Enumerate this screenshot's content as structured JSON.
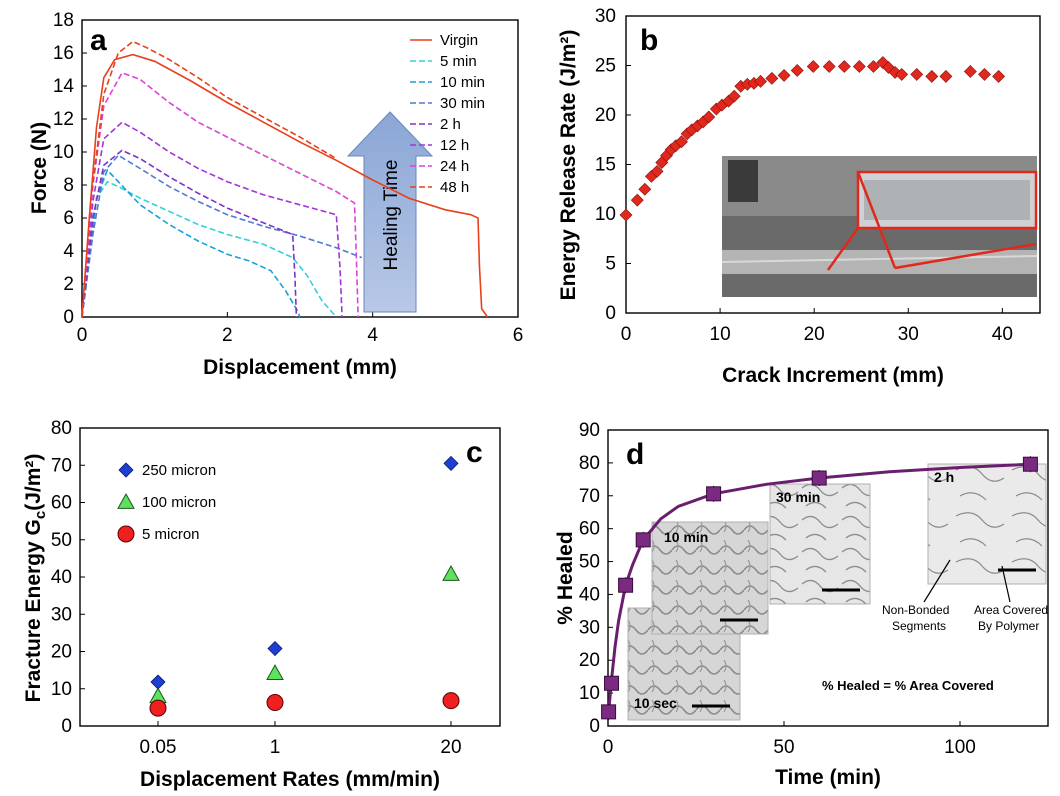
{
  "chart_data": [
    {
      "panel": "a",
      "type": "line",
      "xlabel": "Displacement (mm)",
      "ylabel": "Force (N)",
      "xlim": [
        0,
        6
      ],
      "ylim": [
        0,
        18
      ],
      "xticks": [
        "0",
        "2",
        "4",
        "6"
      ],
      "yticks": [
        "0",
        "2",
        "4",
        "6",
        "8",
        "10",
        "12",
        "14",
        "16",
        "18"
      ],
      "annotation": "Healing Time",
      "series": [
        {
          "name": "Virgin",
          "color": "#e8401c",
          "dash": "solid",
          "points": [
            [
              0,
              0
            ],
            [
              0.1,
              6
            ],
            [
              0.2,
              11.5
            ],
            [
              0.3,
              14.5
            ],
            [
              0.45,
              15.6
            ],
            [
              0.7,
              15.9
            ],
            [
              1.0,
              15.5
            ],
            [
              1.5,
              14.3
            ],
            [
              2.0,
              13.0
            ],
            [
              2.5,
              11.8
            ],
            [
              3.0,
              10.6
            ],
            [
              3.5,
              9.5
            ],
            [
              4.0,
              8.3
            ],
            [
              4.5,
              7.2
            ],
            [
              5.0,
              6.5
            ],
            [
              5.35,
              6.2
            ],
            [
              5.45,
              6.0
            ],
            [
              5.47,
              3.0
            ],
            [
              5.5,
              0.5
            ],
            [
              5.58,
              0
            ]
          ]
        },
        {
          "name": "5 min",
          "color": "#35d0d8",
          "dash": "dash",
          "points": [
            [
              0,
              0
            ],
            [
              0.1,
              3.5
            ],
            [
              0.2,
              7.2
            ],
            [
              0.35,
              8.2
            ],
            [
              0.5,
              7.9
            ],
            [
              0.8,
              7.2
            ],
            [
              1.2,
              6.4
            ],
            [
              1.6,
              5.6
            ],
            [
              2.0,
              5.0
            ],
            [
              2.5,
              4.4
            ],
            [
              2.9,
              3.6
            ],
            [
              3.1,
              2.5
            ],
            [
              3.3,
              1.0
            ],
            [
              3.5,
              0
            ]
          ]
        },
        {
          "name": "10 min",
          "color": "#1aa0d8",
          "dash": "dash",
          "points": [
            [
              0,
              0
            ],
            [
              0.1,
              3.5
            ],
            [
              0.2,
              7.2
            ],
            [
              0.35,
              8.9
            ],
            [
              0.5,
              8.2
            ],
            [
              0.8,
              6.8
            ],
            [
              1.2,
              5.6
            ],
            [
              1.6,
              4.6
            ],
            [
              2.0,
              3.8
            ],
            [
              2.3,
              3.4
            ],
            [
              2.6,
              2.8
            ],
            [
              2.8,
              1.6
            ],
            [
              2.95,
              0.5
            ],
            [
              3.0,
              0
            ]
          ]
        },
        {
          "name": "30 min",
          "color": "#4f7ad0",
          "dash": "dash",
          "points": [
            [
              0,
              0
            ],
            [
              0.15,
              5
            ],
            [
              0.3,
              8.8
            ],
            [
              0.5,
              9.8
            ],
            [
              0.8,
              9.0
            ],
            [
              1.2,
              7.9
            ],
            [
              1.6,
              7.0
            ],
            [
              2.0,
              6.2
            ],
            [
              2.5,
              5.5
            ],
            [
              3.0,
              4.9
            ],
            [
              3.5,
              4.2
            ],
            [
              3.85,
              3.6
            ]
          ]
        },
        {
          "name": "2 h",
          "color": "#7a33c8",
          "dash": "dash",
          "points": [
            [
              0,
              0
            ],
            [
              0.15,
              6
            ],
            [
              0.3,
              9.2
            ],
            [
              0.55,
              10.1
            ],
            [
              0.8,
              9.6
            ],
            [
              1.2,
              8.5
            ],
            [
              1.6,
              7.5
            ],
            [
              2.0,
              6.6
            ],
            [
              2.5,
              5.7
            ],
            [
              2.9,
              5.0
            ],
            [
              2.93,
              2.5
            ],
            [
              2.95,
              0
            ]
          ]
        },
        {
          "name": "12 h",
          "color": "#a035d8",
          "dash": "dash",
          "points": [
            [
              0,
              0
            ],
            [
              0.15,
              7
            ],
            [
              0.3,
              10.8
            ],
            [
              0.55,
              11.8
            ],
            [
              0.8,
              11.2
            ],
            [
              1.2,
              10.0
            ],
            [
              1.6,
              9.0
            ],
            [
              2.0,
              8.2
            ],
            [
              2.5,
              7.4
            ],
            [
              3.0,
              6.8
            ],
            [
              3.5,
              6.2
            ],
            [
              3.55,
              3.0
            ],
            [
              3.58,
              0
            ]
          ]
        },
        {
          "name": "24 h",
          "color": "#e040d8",
          "dash": "dash",
          "points": [
            [
              0,
              0
            ],
            [
              0.15,
              8
            ],
            [
              0.3,
              12.8
            ],
            [
              0.55,
              14.8
            ],
            [
              0.8,
              14.4
            ],
            [
              1.2,
              13.0
            ],
            [
              1.6,
              11.8
            ],
            [
              2.0,
              10.9
            ],
            [
              2.5,
              9.8
            ],
            [
              3.0,
              8.7
            ],
            [
              3.5,
              7.6
            ],
            [
              3.75,
              6.9
            ],
            [
              3.78,
              3.0
            ],
            [
              3.8,
              0
            ]
          ]
        },
        {
          "name": "48 h",
          "color": "#e8401c",
          "dash": "dash",
          "points": [
            [
              0,
              0
            ],
            [
              0.12,
              7
            ],
            [
              0.3,
              13.5
            ],
            [
              0.5,
              16.0
            ],
            [
              0.7,
              16.7
            ],
            [
              0.9,
              16.3
            ],
            [
              1.2,
              15.6
            ],
            [
              1.6,
              14.5
            ],
            [
              2.0,
              13.3
            ],
            [
              2.5,
              12.1
            ],
            [
              3.0,
              10.9
            ],
            [
              3.5,
              9.6
            ]
          ]
        }
      ]
    },
    {
      "panel": "b",
      "type": "scatter",
      "xlabel": "Crack Increment (mm)",
      "ylabel": "Energy Release Rate (J/m²)",
      "xlim": [
        0,
        44
      ],
      "ylim": [
        0,
        30
      ],
      "xticks": [
        "0",
        "10",
        "20",
        "30",
        "40"
      ],
      "yticks": [
        "0",
        "5",
        "10",
        "15",
        "20",
        "25",
        "30"
      ],
      "marker_color": "#e0281c",
      "x": [
        0,
        1.2,
        2.0,
        2.7,
        3.3,
        3.8,
        4.3,
        4.8,
        5.3,
        5.9,
        6.5,
        7.0,
        7.6,
        8.2,
        8.8,
        9.6,
        10.2,
        10.9,
        11.5,
        12.2,
        12.9,
        13.6,
        14.3,
        15.5,
        16.8,
        18.2,
        19.9,
        21.6,
        23.2,
        24.8,
        26.3,
        27.3,
        27.9,
        28.6,
        29.3,
        30.9,
        32.5,
        34.0,
        36.6,
        38.1,
        39.6
      ],
      "y": [
        9.9,
        11.4,
        12.5,
        13.8,
        14.3,
        15.2,
        15.9,
        16.5,
        16.9,
        17.3,
        18.1,
        18.5,
        18.9,
        19.3,
        19.8,
        20.6,
        21.0,
        21.4,
        21.9,
        22.9,
        23.1,
        23.2,
        23.4,
        23.7,
        24.0,
        24.5,
        24.9,
        24.9,
        24.9,
        24.9,
        24.9,
        25.3,
        24.8,
        24.3,
        24.1,
        24.1,
        23.9,
        23.9,
        24.4,
        24.1,
        23.9
      ]
    },
    {
      "panel": "c",
      "type": "scatter",
      "xlabel": "Displacement Rates (mm/min)",
      "ylabel": "Fracture Energy G",
      "ylabel_sub": "c",
      "ylabel_tail": "(J/m²)",
      "categories": [
        "0.05",
        "1",
        "20"
      ],
      "ylim": [
        0,
        80
      ],
      "yticks": [
        "0",
        "10",
        "20",
        "30",
        "40",
        "50",
        "60",
        "70",
        "80"
      ],
      "series": [
        {
          "name": "250 micron",
          "color": "#1f3fd0",
          "marker": "diamond",
          "values": [
            11.8,
            20.8,
            70.5
          ]
        },
        {
          "name": "100 micron",
          "color": "#5fe05f",
          "marker": "triangle",
          "values": [
            8.0,
            14.2,
            40.8
          ]
        },
        {
          "name": "5 micron",
          "color": "#f02020",
          "marker": "circle",
          "values": [
            4.8,
            6.3,
            6.8
          ]
        }
      ]
    },
    {
      "panel": "d",
      "type": "line",
      "xlabel": "Time (min)",
      "ylabel": "% Healed",
      "xlim": [
        0,
        125
      ],
      "ylim": [
        0,
        90
      ],
      "xticks": [
        "0",
        "50",
        "100"
      ],
      "yticks": [
        "0",
        "10",
        "20",
        "30",
        "40",
        "50",
        "60",
        "70",
        "80",
        "90"
      ],
      "line_color": "#6a1f6e",
      "marker_color": "#7a2a80",
      "x": [
        0.17,
        1,
        5,
        10,
        30,
        60,
        120
      ],
      "y": [
        4.3,
        13,
        42.8,
        56.6,
        70.6,
        75.4,
        79.6
      ],
      "fit_curve": [
        [
          0,
          2
        ],
        [
          1,
          14
        ],
        [
          2,
          24
        ],
        [
          3,
          32
        ],
        [
          5,
          42.8
        ],
        [
          7,
          49
        ],
        [
          10,
          56.6
        ],
        [
          15,
          63
        ],
        [
          20,
          66.8
        ],
        [
          30,
          70.6
        ],
        [
          45,
          73.5
        ],
        [
          60,
          75.4
        ],
        [
          80,
          77.3
        ],
        [
          100,
          78.6
        ],
        [
          120,
          79.6
        ]
      ],
      "insets": [
        "10 sec",
        "10 min",
        "30 min",
        "2 h"
      ],
      "notes": {
        "non_bonded": [
          "Non-Bonded",
          "Segments"
        ],
        "area_covered": [
          "Area Covered",
          "By Polymer"
        ],
        "formula": "% Healed = % Area Covered"
      }
    }
  ]
}
